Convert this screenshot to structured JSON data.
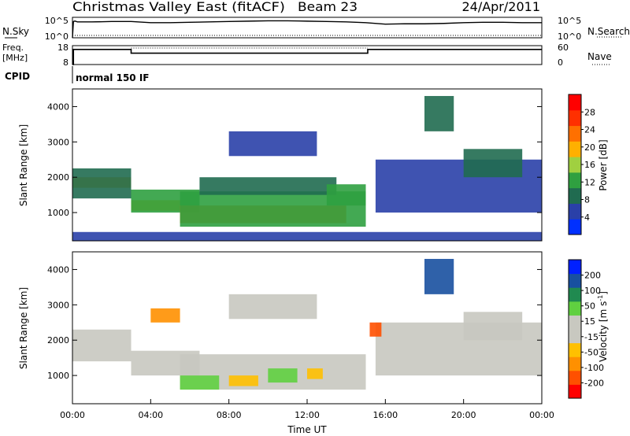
{
  "title": {
    "station": "Christmas Valley East (fitACF)",
    "beam": "Beam 23",
    "date": "24/Apr/2011"
  },
  "nsky_panel": {
    "left_label": "N.Sky",
    "right_label": "N.Search",
    "tick_top": "10^5",
    "tick_bottom": "10^0"
  },
  "freq_panel": {
    "left_label_line1": "Freq.",
    "left_label_line2": "[MHz]",
    "left_ticks": [
      "18",
      "8"
    ],
    "right_ticks": [
      "60",
      "0"
    ],
    "right_label": "Nave"
  },
  "cpid_panel": {
    "left_label": "CPID",
    "value": "normal 150 IF"
  },
  "power_colorbar": {
    "label": "Power [dB]",
    "colors": [
      "#0030ff",
      "#2a40a8",
      "#206b50",
      "#2fa040",
      "#a0d040",
      "#ffb000",
      "#ff7000",
      "#ff3000",
      "#ff0000"
    ],
    "ticks": [
      "4",
      "8",
      "12",
      "16",
      "20",
      "24",
      "28"
    ]
  },
  "velocity_colorbar": {
    "label": "Velocity [m s",
    "label_sup": "-1",
    "label_end": "]",
    "colors": [
      "#ff0000",
      "#ff5000",
      "#ff9000",
      "#ffc000",
      "#c8c8c0",
      "#c8c8c0",
      "#60d040",
      "#208a50",
      "#1850a0",
      "#0020ff"
    ],
    "ticks": [
      "-200",
      "-100",
      "-50",
      "-15",
      "15",
      "50",
      "100",
      "200"
    ]
  },
  "chart_data": [
    {
      "type": "line",
      "panel": "nsky",
      "series": [
        {
          "name": "N.Sky",
          "x": [
            0.0,
            0.05,
            0.1,
            0.15,
            0.2,
            0.25,
            0.5,
            1,
            2,
            3,
            4,
            5,
            6,
            7,
            8,
            9,
            10,
            11,
            12,
            13,
            14,
            15,
            16,
            17,
            18,
            19,
            20,
            21,
            22,
            23,
            24
          ],
          "y": [
            0.0,
            4.3,
            4.4,
            4.4,
            4.3,
            4.2,
            4.2,
            4.2,
            4.3,
            4.3,
            4.0,
            4.0,
            4.1,
            4.2,
            4.3,
            4.4,
            4.5,
            4.5,
            4.4,
            4.3,
            4.2,
            4.0,
            3.6,
            3.7,
            3.7,
            3.8,
            4.0,
            4.1,
            4.1,
            4.0,
            4.0
          ]
        }
      ],
      "ylim": [
        0,
        5
      ]
    },
    {
      "type": "line",
      "panel": "freq",
      "series": [
        {
          "name": "Freq",
          "x": [
            0.0,
            0.05,
            0.05,
            3.0,
            3.0,
            15.1,
            15.1,
            24.0
          ],
          "y": [
            8,
            8,
            16,
            16,
            14,
            14,
            16,
            16
          ]
        }
      ],
      "ylim": [
        8,
        18
      ]
    },
    {
      "type": "heatmap",
      "panel": "power",
      "xlabel": "",
      "ylabel": "Slant Range [km]",
      "xlim": [
        0,
        24
      ],
      "ylim": [
        200,
        4500
      ],
      "yticks": [
        1000,
        2000,
        3000,
        4000
      ],
      "ytick_labels": [
        "1000",
        "2000",
        "3000",
        "4000"
      ],
      "regions": [
        {
          "x0": 0.0,
          "x1": 3.0,
          "y0": 1700,
          "y1": 2000,
          "value": 22
        },
        {
          "x0": 0.0,
          "x1": 3.0,
          "y0": 1400,
          "y1": 2250,
          "value": 10
        },
        {
          "x0": 3.0,
          "x1": 6.0,
          "y0": 1050,
          "y1": 1350,
          "value": 22
        },
        {
          "x0": 3.0,
          "x1": 6.5,
          "y0": 1000,
          "y1": 1650,
          "value": 12
        },
        {
          "x0": 5.5,
          "x1": 14.0,
          "y0": 700,
          "y1": 1200,
          "value": 26
        },
        {
          "x0": 5.5,
          "x1": 15.0,
          "y0": 600,
          "y1": 1600,
          "value": 12
        },
        {
          "x0": 6.5,
          "x1": 13.5,
          "y0": 1500,
          "y1": 2000,
          "value": 10
        },
        {
          "x0": 8.0,
          "x1": 12.5,
          "y0": 2600,
          "y1": 3300,
          "value": 7
        },
        {
          "x0": 13.0,
          "x1": 15.0,
          "y0": 1200,
          "y1": 1800,
          "value": 14
        },
        {
          "x0": 15.5,
          "x1": 24.0,
          "y0": 1000,
          "y1": 2500,
          "value": 6
        },
        {
          "x0": 18.0,
          "x1": 19.5,
          "y0": 3300,
          "y1": 4300,
          "value": 8
        },
        {
          "x0": 20.0,
          "x1": 23.0,
          "y0": 2000,
          "y1": 2800,
          "value": 10
        },
        {
          "x0": 0.0,
          "x1": 24.0,
          "y0": 200,
          "y1": 450,
          "value": 6
        }
      ]
    },
    {
      "type": "heatmap",
      "panel": "velocity",
      "xlabel": "Time UT",
      "ylabel": "Slant Range [km]",
      "xlim": [
        0,
        24
      ],
      "ylim": [
        200,
        4500
      ],
      "xticks": [
        0,
        4,
        8,
        12,
        16,
        20,
        24
      ],
      "xtick_labels": [
        "00:00",
        "04:00",
        "08:00",
        "12:00",
        "16:00",
        "20:00",
        "00:00"
      ],
      "yticks": [
        1000,
        2000,
        3000,
        4000
      ],
      "ytick_labels": [
        "1000",
        "2000",
        "3000",
        "4000"
      ],
      "regions": [
        {
          "x0": 0.0,
          "x1": 3.0,
          "y0": 1400,
          "y1": 2300,
          "value": 0
        },
        {
          "x0": 3.0,
          "x1": 6.5,
          "y0": 1000,
          "y1": 1700,
          "value": 0
        },
        {
          "x0": 5.5,
          "x1": 15.0,
          "y0": 600,
          "y1": 1600,
          "value": 0
        },
        {
          "x0": 5.5,
          "x1": 7.5,
          "y0": 600,
          "y1": 1000,
          "value": 30
        },
        {
          "x0": 8.0,
          "x1": 9.5,
          "y0": 700,
          "y1": 1000,
          "value": -40
        },
        {
          "x0": 10.0,
          "x1": 11.5,
          "y0": 800,
          "y1": 1200,
          "value": 30
        },
        {
          "x0": 12.0,
          "x1": 12.8,
          "y0": 900,
          "y1": 1200,
          "value": -40
        },
        {
          "x0": 8.0,
          "x1": 12.5,
          "y0": 2600,
          "y1": 3300,
          "value": 0
        },
        {
          "x0": 15.5,
          "x1": 24.0,
          "y0": 1000,
          "y1": 2500,
          "value": 0
        },
        {
          "x0": 15.2,
          "x1": 15.8,
          "y0": 2100,
          "y1": 2500,
          "value": -120
        },
        {
          "x0": 18.0,
          "x1": 19.5,
          "y0": 3300,
          "y1": 4300,
          "value": 180
        },
        {
          "x0": 20.0,
          "x1": 23.0,
          "y0": 2000,
          "y1": 2800,
          "value": 0
        },
        {
          "x0": 4.0,
          "x1": 5.5,
          "y0": 2500,
          "y1": 2900,
          "value": -60
        }
      ]
    }
  ]
}
